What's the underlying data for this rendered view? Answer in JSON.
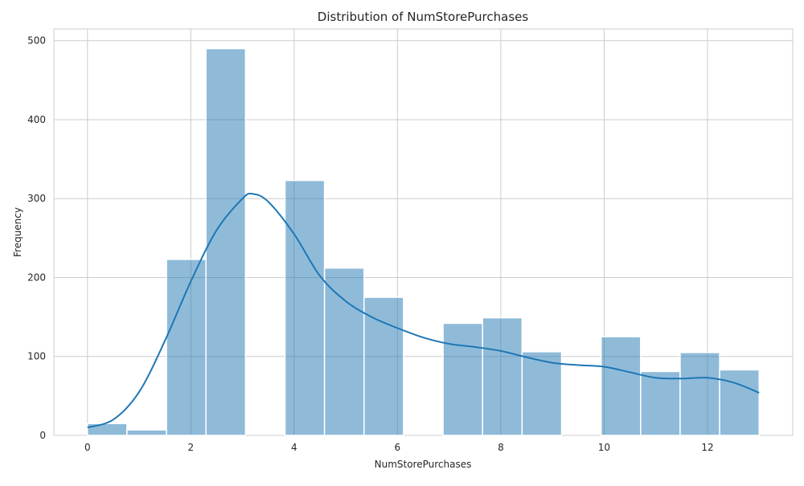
{
  "chart_data": {
    "type": "bar",
    "title": "Distribution of NumStorePurchases",
    "xlabel": "NumStorePurchases",
    "ylabel": "Frequency",
    "xlim": [
      -0.65,
      13.65
    ],
    "ylim": [
      0,
      515
    ],
    "xticks": [
      0,
      2,
      4,
      6,
      8,
      10,
      12
    ],
    "yticks": [
      0,
      100,
      200,
      300,
      400,
      500
    ],
    "grid": true,
    "bar_color": "#1f77b4",
    "bar_opacity": 0.5,
    "kde_color": "#1f77b4",
    "bins": [
      {
        "x0": 0.0,
        "x1": 0.7647,
        "count": 15
      },
      {
        "x0": 0.7647,
        "x1": 1.5294,
        "count": 7
      },
      {
        "x0": 1.5294,
        "x1": 2.2941,
        "count": 223
      },
      {
        "x0": 2.2941,
        "x1": 3.0588,
        "count": 490
      },
      {
        "x0": 3.0588,
        "x1": 3.8235,
        "count": 0
      },
      {
        "x0": 3.8235,
        "x1": 4.5882,
        "count": 323
      },
      {
        "x0": 4.5882,
        "x1": 5.3529,
        "count": 212
      },
      {
        "x0": 5.3529,
        "x1": 6.1176,
        "count": 175
      },
      {
        "x0": 6.1176,
        "x1": 6.8824,
        "count": 0
      },
      {
        "x0": 6.8824,
        "x1": 7.6471,
        "count": 142
      },
      {
        "x0": 7.6471,
        "x1": 8.4118,
        "count": 149
      },
      {
        "x0": 8.4118,
        "x1": 9.1765,
        "count": 106
      },
      {
        "x0": 9.1765,
        "x1": 9.9412,
        "count": 0
      },
      {
        "x0": 9.9412,
        "x1": 10.7059,
        "count": 125
      },
      {
        "x0": 10.7059,
        "x1": 11.4706,
        "count": 81
      },
      {
        "x0": 11.4706,
        "x1": 12.2353,
        "count": 105
      },
      {
        "x0": 12.2353,
        "x1": 13.0,
        "count": 83
      }
    ],
    "kde": {
      "x": [
        0,
        0.5,
        1.0,
        1.5,
        2.0,
        2.5,
        3.0,
        3.2,
        3.5,
        4.0,
        4.5,
        5.0,
        5.5,
        6.0,
        6.5,
        7.0,
        7.5,
        8.0,
        8.5,
        9.0,
        9.5,
        10.0,
        10.5,
        11.0,
        11.5,
        12.0,
        12.5,
        13.0
      ],
      "y": [
        10,
        20,
        55,
        120,
        195,
        260,
        300,
        306,
        296,
        255,
        202,
        170,
        150,
        136,
        124,
        116,
        112,
        107,
        99,
        92,
        89,
        87,
        80,
        73,
        72,
        73,
        67,
        54
      ]
    }
  }
}
